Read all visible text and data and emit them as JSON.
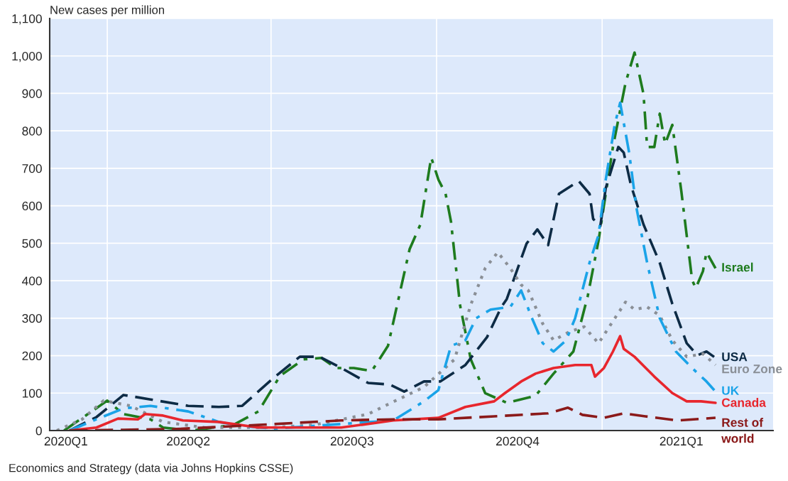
{
  "chart_data": {
    "type": "line",
    "ylabel": "New cases per million",
    "annotations": [
      "Economics and Strategy (data via Johns Hopkins CSSE)"
    ],
    "xlim": [
      "2020-02-29",
      "2021-04-06"
    ],
    "xticks": [
      {
        "value": "2020-03-09",
        "label": "2020Q1"
      },
      {
        "value": "2020-04-01",
        "label": null
      },
      {
        "value": "2020-05-16",
        "label": "2020Q2"
      },
      {
        "value": "2020-07-01",
        "label": null
      },
      {
        "value": "2020-08-15",
        "label": "2020Q3"
      },
      {
        "value": "2020-10-01",
        "label": null
      },
      {
        "value": "2020-11-15",
        "label": "2020Q4"
      },
      {
        "value": "2021-01-01",
        "label": null
      },
      {
        "value": "2021-02-14",
        "label": "2021Q1"
      }
    ],
    "ylim": [
      0,
      1100
    ],
    "yticks": [
      0,
      100,
      200,
      300,
      400,
      500,
      600,
      700,
      800,
      900,
      {
        "value": 1000,
        "label": "1,000"
      },
      {
        "value": 1100,
        "label": "1,100"
      }
    ],
    "grid": true,
    "legend": false,
    "series": [
      {
        "name": "Israel",
        "color": "#1e7b1e",
        "line_style": "dashdot",
        "x": [
          "2020-03-08",
          "2020-04-01",
          "2020-04-10",
          "2020-04-25",
          "2020-05-02",
          "2020-05-18",
          "2020-06-10",
          "2020-06-24",
          "2020-07-06",
          "2020-07-19",
          "2020-07-29",
          "2020-08-06",
          "2020-08-16",
          "2020-08-26",
          "2020-09-04",
          "2020-09-16",
          "2020-09-22",
          "2020-09-28",
          "2020-10-02",
          "2020-10-06",
          "2020-10-09",
          "2020-10-14",
          "2020-10-20",
          "2020-10-28",
          "2020-11-09",
          "2020-11-25",
          "2020-12-05",
          "2020-12-16",
          "2020-12-24",
          "2020-12-30",
          "2021-01-07",
          "2021-01-14",
          "2021-01-19",
          "2021-01-24",
          "2021-01-26",
          "2021-01-30",
          "2021-02-02",
          "2021-02-05",
          "2021-02-09",
          "2021-02-14",
          "2021-02-20",
          "2021-02-22",
          "2021-02-26",
          "2021-02-28",
          "2021-03-05"
        ],
        "values": [
          0,
          80,
          44,
          30,
          8,
          0,
          15,
          51,
          146,
          190,
          194,
          167,
          167,
          159,
          226,
          484,
          550,
          729,
          670,
          632,
          558,
          336,
          190,
          100,
          74,
          93,
          152,
          211,
          359,
          507,
          757,
          928,
          1009,
          898,
          757,
          757,
          846,
          765,
          816,
          639,
          402,
          380,
          425,
          476,
          433
        ]
      },
      {
        "name": "USA",
        "color": "#0d2b45",
        "line_style": "dashed",
        "x": [
          "2020-03-11",
          "2020-03-26",
          "2020-04-10",
          "2020-04-25",
          "2020-05-16",
          "2020-06-02",
          "2020-06-15",
          "2020-07-02",
          "2020-07-17",
          "2020-07-28",
          "2020-08-09",
          "2020-08-24",
          "2020-09-05",
          "2020-09-13",
          "2020-09-24",
          "2020-10-03",
          "2020-10-17",
          "2020-10-29",
          "2020-11-06",
          "2020-11-09",
          "2020-11-20",
          "2020-11-26",
          "2020-12-02",
          "2020-12-08",
          "2020-12-19",
          "2020-12-25",
          "2020-12-27",
          "2020-12-31",
          "2021-01-03",
          "2021-01-10",
          "2021-01-13",
          "2021-01-17",
          "2021-01-24",
          "2021-02-02",
          "2021-02-09",
          "2021-02-17",
          "2021-02-23",
          "2021-02-28",
          "2021-03-05"
        ],
        "values": [
          0,
          36,
          95,
          83,
          66,
          63,
          66,
          139,
          197,
          197,
          167,
          127,
          123,
          104,
          131,
          131,
          175,
          249,
          330,
          351,
          499,
          537,
          495,
          632,
          666,
          632,
          565,
          546,
          647,
          757,
          742,
          655,
          550,
          448,
          338,
          233,
          201,
          211,
          194
        ]
      },
      {
        "name": "Euro Zone",
        "color": "#8a8f96",
        "line_style": "dotted",
        "x": [
          "2020-03-04",
          "2020-03-18",
          "2020-03-30",
          "2020-04-14",
          "2020-05-02",
          "2020-05-25",
          "2020-07-02",
          "2020-07-25",
          "2020-08-24",
          "2020-09-01",
          "2020-09-24",
          "2020-10-11",
          "2020-10-20",
          "2020-10-28",
          "2020-11-04",
          "2020-11-11",
          "2020-11-17",
          "2020-11-21",
          "2020-11-29",
          "2020-12-05",
          "2020-12-14",
          "2020-12-22",
          "2020-12-30",
          "2021-01-07",
          "2021-01-14",
          "2021-01-19",
          "2021-01-26",
          "2021-02-02",
          "2021-02-09",
          "2021-02-17",
          "2021-02-26",
          "2021-03-05"
        ],
        "values": [
          0,
          30,
          80,
          66,
          23,
          8,
          8,
          15,
          44,
          63,
          116,
          190,
          336,
          433,
          476,
          433,
          389,
          374,
          285,
          241,
          264,
          277,
          233,
          292,
          343,
          323,
          330,
          307,
          241,
          197,
          205,
          175
        ]
      },
      {
        "name": "UK",
        "color": "#1aa3e8",
        "line_style": "dashdot",
        "x": [
          "2020-03-11",
          "2020-03-26",
          "2020-04-10",
          "2020-04-25",
          "2020-05-16",
          "2020-06-02",
          "2020-06-15",
          "2020-07-02",
          "2020-08-09",
          "2020-08-16",
          "2020-09-07",
          "2020-09-24",
          "2020-10-02",
          "2020-10-09",
          "2020-10-17",
          "2020-10-23",
          "2020-10-31",
          "2020-11-11",
          "2020-11-17",
          "2020-11-23",
          "2020-11-29",
          "2020-12-05",
          "2020-12-12",
          "2020-12-17",
          "2020-12-25",
          "2020-12-30",
          "2021-01-03",
          "2021-01-08",
          "2021-01-11",
          "2021-01-16",
          "2021-01-20",
          "2021-01-26",
          "2021-02-02",
          "2021-02-11",
          "2021-02-20",
          "2021-02-28",
          "2021-03-05"
        ],
        "values": [
          0,
          30,
          59,
          66,
          51,
          23,
          12,
          5,
          null,
          null,
          27,
          78,
          108,
          226,
          241,
          300,
          323,
          330,
          374,
          300,
          233,
          211,
          241,
          300,
          448,
          522,
          670,
          816,
          875,
          742,
          596,
          448,
          300,
          211,
          167,
          131,
          104
        ]
      },
      {
        "name": "Canada",
        "color": "#e8262d",
        "line_style": "solid",
        "x": [
          "2020-03-11",
          "2020-03-26",
          "2020-04-07",
          "2020-04-18",
          "2020-04-22",
          "2020-05-02",
          "2020-05-13",
          "2020-06-02",
          "2020-06-24",
          "2020-08-09",
          "2020-09-07",
          "2020-10-02",
          "2020-10-17",
          "2020-11-02",
          "2020-11-08",
          "2020-11-17",
          "2020-11-25",
          "2020-12-05",
          "2020-12-17",
          "2020-12-26",
          "2020-12-28",
          "2021-01-02",
          "2021-01-07",
          "2021-01-11",
          "2021-01-13",
          "2021-01-19",
          "2021-01-30",
          "2021-02-09",
          "2021-02-17",
          "2021-02-25",
          "2021-03-05"
        ],
        "values": [
          0,
          8,
          32,
          30,
          44,
          40,
          27,
          23,
          8,
          8,
          27,
          34,
          63,
          78,
          100,
          131,
          152,
          167,
          175,
          175,
          144,
          167,
          211,
          252,
          218,
          197,
          144,
          100,
          78,
          78,
          74
        ]
      },
      {
        "name": "Rest of\nworld",
        "color": "#8b1a1a",
        "line_style": "dashed",
        "x": [
          "2020-03-11",
          "2020-04-10",
          "2020-05-09",
          "2020-06-24",
          "2020-08-09",
          "2020-09-07",
          "2020-10-02",
          "2020-11-02",
          "2020-12-02",
          "2020-12-13",
          "2020-12-21",
          "2021-01-02",
          "2021-01-13",
          "2021-01-25",
          "2021-02-12",
          "2021-03-05"
        ],
        "values": [
          0,
          2,
          4,
          15,
          27,
          30,
          30,
          38,
          46,
          61,
          42,
          34,
          46,
          38,
          27,
          34
        ]
      }
    ]
  }
}
